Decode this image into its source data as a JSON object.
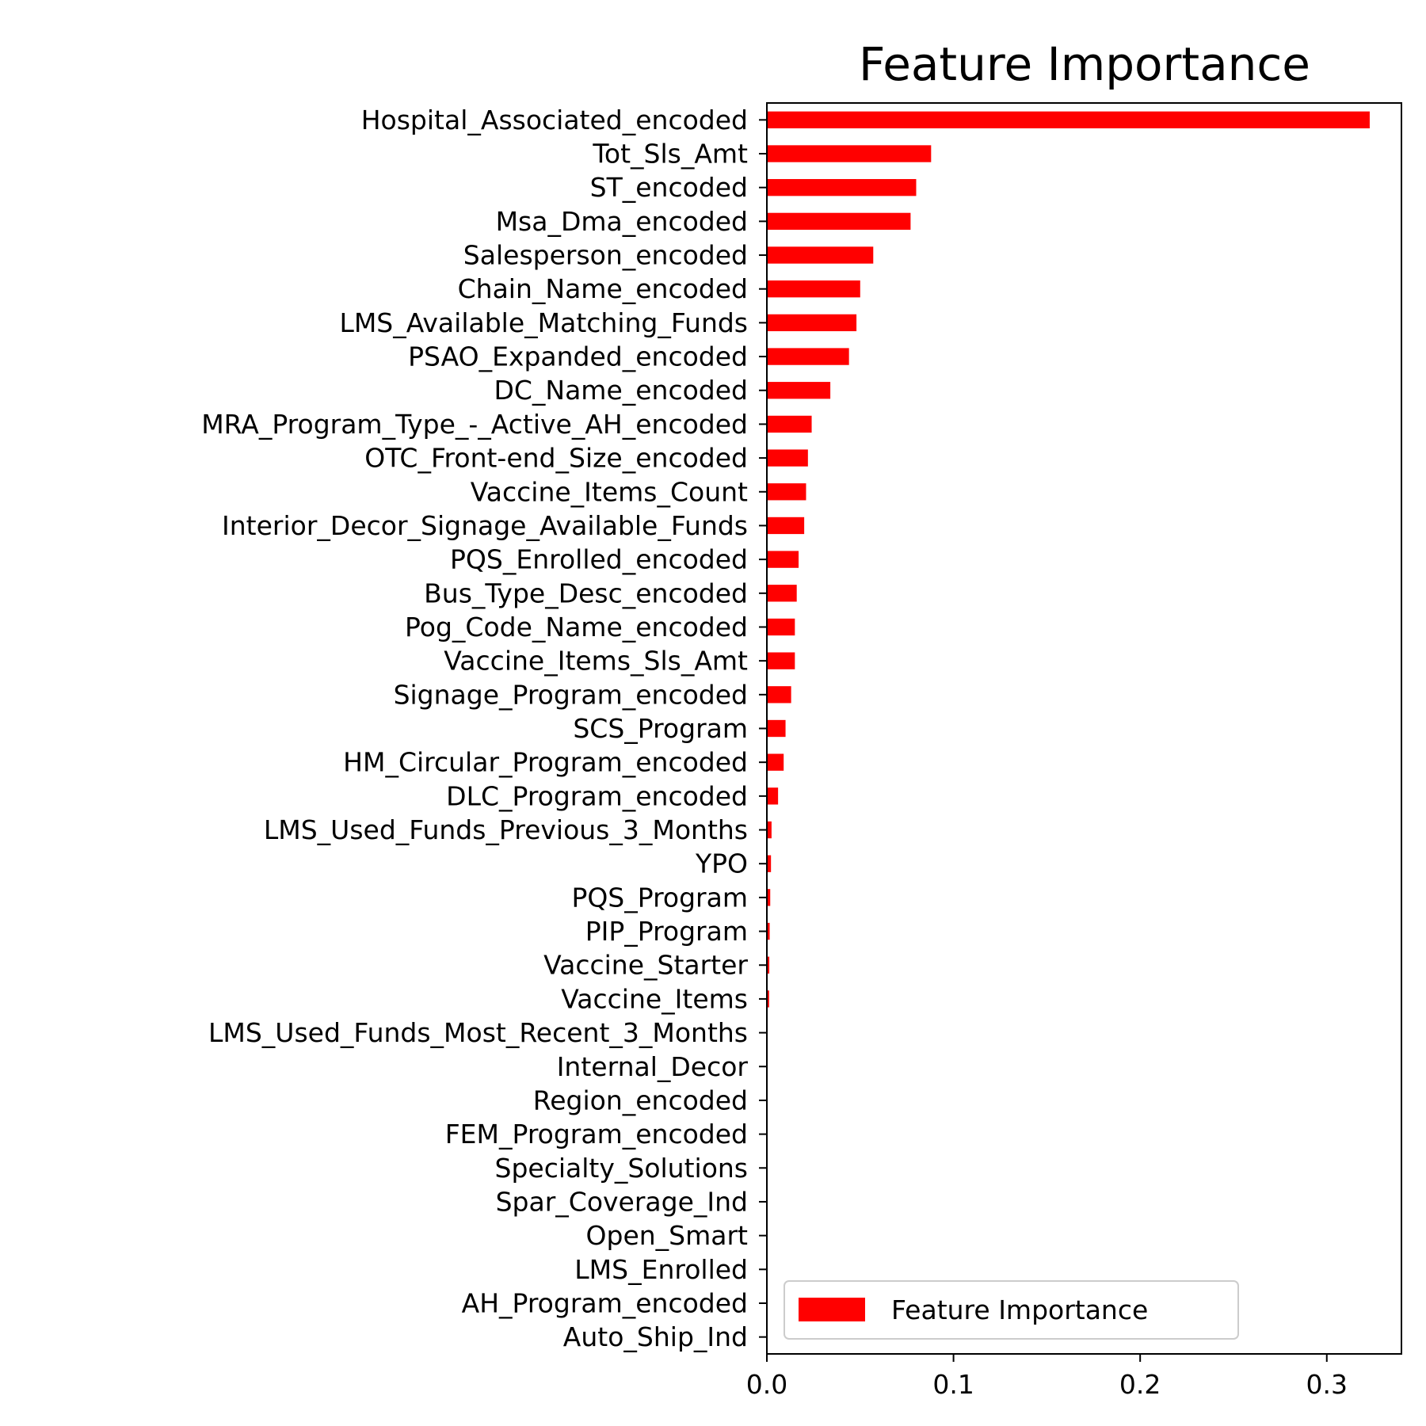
{
  "chart_data": {
    "type": "bar",
    "orientation": "horizontal",
    "title": "Feature Importance",
    "xlabel": "",
    "ylabel": "",
    "xlim": [
      0,
      0.34
    ],
    "xticks": [
      "0.0",
      "0.1",
      "0.2",
      "0.3"
    ],
    "grid": false,
    "legend_position": "lower-right",
    "categories": [
      "Hospital_Associated_encoded",
      "Tot_Sls_Amt",
      "ST_encoded",
      "Msa_Dma_encoded",
      "Salesperson_encoded",
      "Chain_Name_encoded",
      "LMS_Available_Matching_Funds",
      "PSAO_Expanded_encoded",
      "DC_Name_encoded",
      "MRA_Program_Type_-_Active_AH_encoded",
      "OTC_Front-end_Size_encoded",
      "Vaccine_Items_Count",
      "Interior_Decor_Signage_Available_Funds",
      "PQS_Enrolled_encoded",
      "Bus_Type_Desc_encoded",
      "Pog_Code_Name_encoded",
      "Vaccine_Items_Sls_Amt",
      "Signage_Program_encoded",
      "SCS_Program",
      "HM_Circular_Program_encoded",
      "DLC_Program_encoded",
      "LMS_Used_Funds_Previous_3_Months",
      "YPO",
      "PQS_Program",
      "PIP_Program",
      "Vaccine_Starter",
      "Vaccine_Items",
      "LMS_Used_Funds_Most_Recent_3_Months",
      "Internal_Decor",
      "Region_encoded",
      "FEM_Program_encoded",
      "Specialty_Solutions",
      "Spar_Coverage_Ind",
      "Open_Smart",
      "LMS_Enrolled",
      "AH_Program_encoded",
      "Auto_Ship_Ind"
    ],
    "series": [
      {
        "name": "Feature Importance",
        "color": "#ff0000",
        "values": [
          0.323,
          0.088,
          0.08,
          0.077,
          0.057,
          0.05,
          0.048,
          0.044,
          0.034,
          0.024,
          0.022,
          0.021,
          0.02,
          0.017,
          0.016,
          0.015,
          0.015,
          0.013,
          0.01,
          0.009,
          0.006,
          0.0025,
          0.0022,
          0.0018,
          0.0015,
          0.0013,
          0.0012,
          0.0,
          0.0,
          0.0,
          0.0,
          0.0,
          0.0,
          0.0,
          0.0,
          0.0,
          0.0
        ]
      }
    ]
  }
}
